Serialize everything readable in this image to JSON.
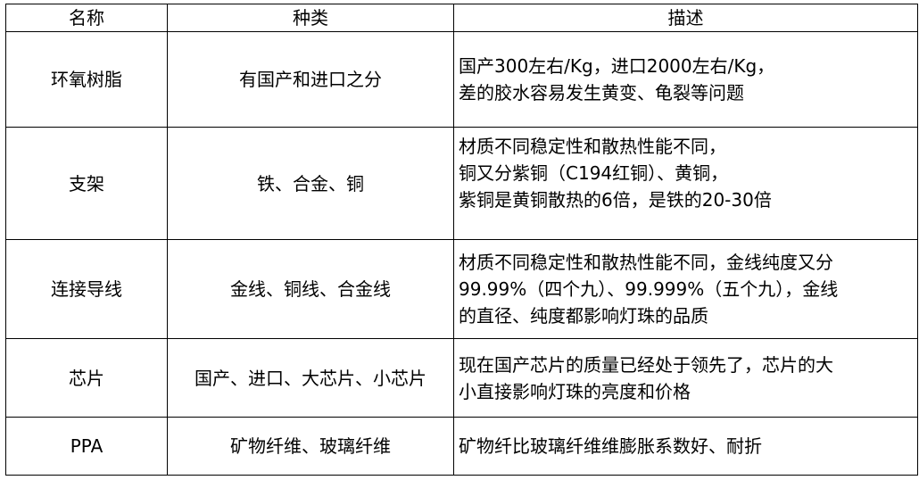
{
  "table": {
    "headers": [
      "名称",
      "种类",
      "描述"
    ],
    "rows": [
      {
        "name": "环氧树脂",
        "type": "有国产和进口之分",
        "desc": [
          "国产300左右/Kg，进口2000左右/Kg，",
          "差的胶水容易发生黄变、龟裂等问题"
        ]
      },
      {
        "name": "支架",
        "type": "铁、合金、铜",
        "desc": [
          "材质不同稳定性和散热性能不同，",
          "铜又分紫铜（C194红铜）、黄铜，",
          "紫铜是黄铜散热的6倍，是铁的20-30倍"
        ]
      },
      {
        "name": "连接导线",
        "type": "金线、铜线、合金线",
        "desc": [
          "材质不同稳定性和散热性能不同，金线纯度又分",
          "99.99%（四个九）、99.999%（五个九），金线",
          "的直径、纯度都影响灯珠的品质"
        ]
      },
      {
        "name": "芯片",
        "type": "国产、进口、大芯片、小芯片",
        "desc": [
          "现在国产芯片的质量已经处于领先了，芯片的大",
          "小直接影响灯珠的亮度和价格"
        ]
      },
      {
        "name": "PPA",
        "type": "矿物纤维、玻璃纤维",
        "desc": [
          "矿物纤比玻璃纤维维膨胀系数好、耐折"
        ]
      }
    ]
  }
}
